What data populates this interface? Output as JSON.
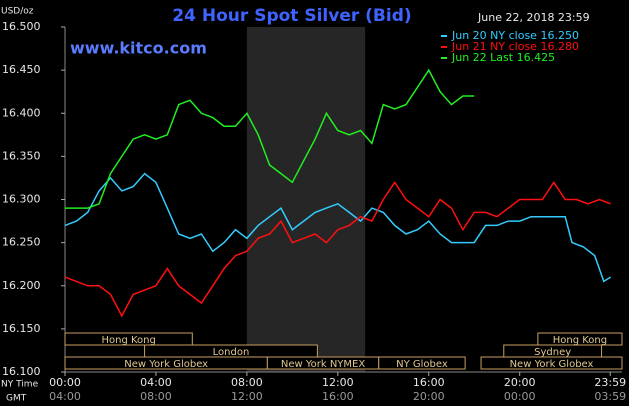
{
  "chart_data": {
    "type": "line",
    "title": "24 Hour Spot Silver (Bid)",
    "subtitle": "www.kitco.com",
    "timestamp": "June 22, 2018 23:59",
    "y_unit": "USD/oz",
    "x_label": "NY Time",
    "x2_label": "GMT",
    "xlim": [
      0,
      24.5
    ],
    "ylim": [
      16.1,
      16.5
    ],
    "yticks": [
      {
        "value": 16.1,
        "label": "16.100"
      },
      {
        "value": 16.15,
        "label": "16.150"
      },
      {
        "value": 16.2,
        "label": "16.200"
      },
      {
        "value": 16.25,
        "label": "16.250"
      },
      {
        "value": 16.3,
        "label": "16.300"
      },
      {
        "value": 16.35,
        "label": "16.350"
      },
      {
        "value": 16.4,
        "label": "16.400"
      },
      {
        "value": 16.45,
        "label": "16.450"
      },
      {
        "value": 16.5,
        "label": "16.500"
      }
    ],
    "xticks": [
      {
        "value": 0,
        "label": "00:00"
      },
      {
        "value": 4,
        "label": "04:00"
      },
      {
        "value": 8,
        "label": "08:00"
      },
      {
        "value": 12,
        "label": "12:00"
      },
      {
        "value": 16,
        "label": "16:00"
      },
      {
        "value": 20,
        "label": "20:00"
      },
      {
        "value": 23.983,
        "label": "23:59"
      }
    ],
    "xticks2": [
      {
        "value": 0,
        "label": "04:00"
      },
      {
        "value": 4,
        "label": "08:00"
      },
      {
        "value": 8,
        "label": "12:00"
      },
      {
        "value": 12,
        "label": "16:00"
      },
      {
        "value": 16,
        "label": "20:00"
      },
      {
        "value": 20,
        "label": "00:00"
      },
      {
        "value": 23.983,
        "label": "03:59"
      }
    ],
    "highlight_range": [
      8.0,
      13.2
    ],
    "sessions": [
      {
        "label": "Hong Kong",
        "row": 0,
        "start": 0,
        "end": 5.6
      },
      {
        "label": "Hong Kong",
        "row": 0,
        "start": 20.8,
        "end": 24.5
      },
      {
        "label": "London",
        "row": 1,
        "start": 3.5,
        "end": 11.1
      },
      {
        "label": "Sydney",
        "row": 1,
        "start": 19.3,
        "end": 23.6
      },
      {
        "label": "New York Globex",
        "row": 2,
        "start": 0,
        "end": 8.9
      },
      {
        "label": "New York NYMEX",
        "row": 2,
        "start": 8.9,
        "end": 13.8
      },
      {
        "label": "NY Globex",
        "row": 2,
        "start": 13.8,
        "end": 17.6
      },
      {
        "label": "New York Globex",
        "row": 2,
        "start": 18.3,
        "end": 24.5
      }
    ],
    "series": [
      {
        "name": "Jun 20 NY close 16.250",
        "color": "#33ccff",
        "x": [
          0,
          0.5,
          1,
          1.5,
          2,
          2.5,
          3,
          3.5,
          4,
          4.5,
          5,
          5.5,
          6,
          6.5,
          7,
          7.5,
          8,
          8.5,
          9,
          9.5,
          10,
          10.5,
          11,
          11.5,
          12,
          12.5,
          13,
          13.5,
          14,
          14.5,
          15,
          15.5,
          16,
          16.5,
          17,
          17.5,
          18,
          18.5,
          19,
          19.5,
          20,
          20.5,
          21,
          21.5,
          22,
          22.3,
          22.8,
          23.3,
          23.7,
          24
        ],
        "values": [
          16.27,
          16.275,
          16.285,
          16.31,
          16.325,
          16.31,
          16.315,
          16.33,
          16.32,
          16.29,
          16.26,
          16.255,
          16.26,
          16.24,
          16.25,
          16.265,
          16.255,
          16.27,
          16.28,
          16.29,
          16.265,
          16.275,
          16.285,
          16.29,
          16.295,
          16.285,
          16.275,
          16.29,
          16.285,
          16.27,
          16.26,
          16.265,
          16.275,
          16.26,
          16.25,
          16.25,
          16.25,
          16.27,
          16.27,
          16.275,
          16.275,
          16.28,
          16.28,
          16.28,
          16.28,
          16.25,
          16.245,
          16.235,
          16.205,
          16.21
        ]
      },
      {
        "name": "Jun 21 NY close 16.280",
        "color": "#ff1010",
        "x": [
          0,
          0.5,
          1,
          1.5,
          2,
          2.5,
          3,
          3.5,
          4,
          4.5,
          5,
          5.5,
          6,
          6.5,
          7,
          7.5,
          8,
          8.5,
          9,
          9.5,
          10,
          10.5,
          11,
          11.5,
          12,
          12.5,
          13,
          13.5,
          14,
          14.5,
          15,
          15.5,
          16,
          16.5,
          17,
          17.5,
          18,
          18.5,
          19,
          19.5,
          20,
          20.5,
          21,
          21.5,
          22,
          22.5,
          23,
          23.5,
          24
        ],
        "values": [
          16.21,
          16.205,
          16.2,
          16.2,
          16.19,
          16.165,
          16.19,
          16.195,
          16.2,
          16.22,
          16.2,
          16.19,
          16.18,
          16.2,
          16.22,
          16.235,
          16.24,
          16.255,
          16.26,
          16.275,
          16.25,
          16.255,
          16.26,
          16.25,
          16.265,
          16.27,
          16.28,
          16.275,
          16.3,
          16.32,
          16.3,
          16.29,
          16.28,
          16.3,
          16.29,
          16.265,
          16.285,
          16.285,
          16.28,
          16.29,
          16.3,
          16.3,
          16.3,
          16.32,
          16.3,
          16.3,
          16.295,
          16.3,
          16.295
        ]
      },
      {
        "name": "Jun 22 Last 16.425",
        "color": "#22ee22",
        "x": [
          0,
          0.5,
          1,
          1.5,
          2,
          2.5,
          3,
          3.5,
          4,
          4.5,
          5,
          5.5,
          6,
          6.5,
          7,
          7.5,
          8,
          8.5,
          9,
          9.5,
          10,
          10.5,
          11,
          11.5,
          12,
          12.5,
          13,
          13.5,
          14,
          14.5,
          15,
          15.5,
          16,
          16.5,
          17,
          17.5,
          18
        ],
        "values": [
          16.29,
          16.29,
          16.29,
          16.295,
          16.33,
          16.35,
          16.37,
          16.375,
          16.37,
          16.375,
          16.41,
          16.415,
          16.4,
          16.395,
          16.385,
          16.385,
          16.4,
          16.375,
          16.34,
          16.33,
          16.32,
          16.345,
          16.37,
          16.4,
          16.38,
          16.375,
          16.38,
          16.365,
          16.41,
          16.405,
          16.41,
          16.43,
          16.45,
          16.425,
          16.41,
          16.42,
          16.42
        ]
      }
    ]
  }
}
